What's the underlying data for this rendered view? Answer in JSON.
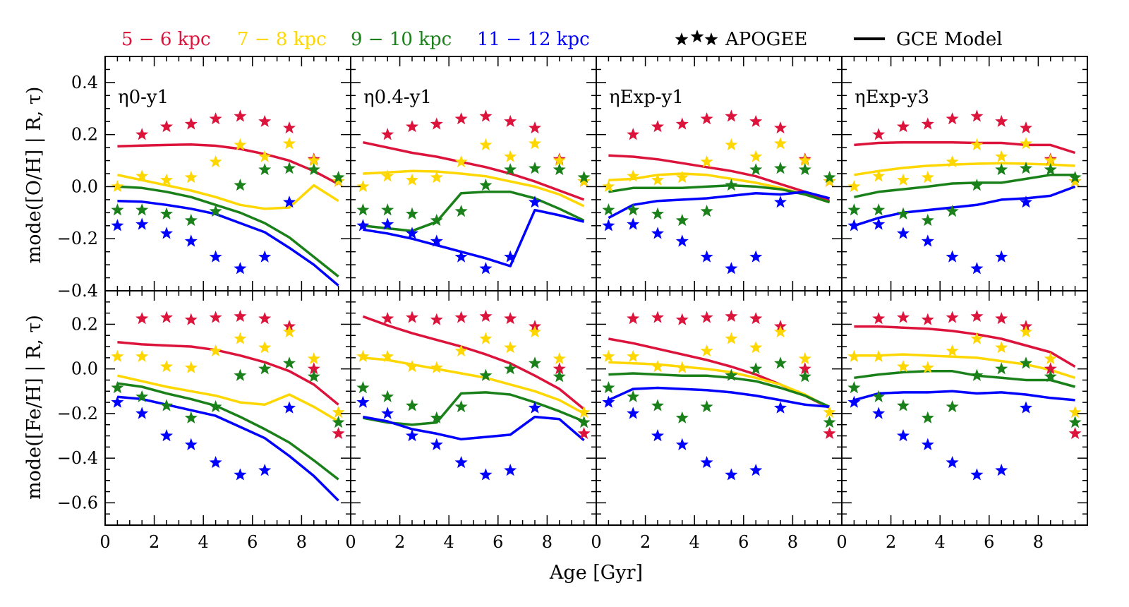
{
  "legend": {
    "bins": [
      {
        "label": "5 − 6 kpc",
        "color": "#dc143c"
      },
      {
        "label": "7 − 8 kpc",
        "color": "#ffd700"
      },
      {
        "label": "9 − 10 kpc",
        "color": "#1a801a"
      },
      {
        "label": "11 − 12 kpc",
        "color": "#0000ff"
      }
    ],
    "apogee_label": "APOGEE",
    "model_label": "GCE Model"
  },
  "xlabel": "Age [Gyr]",
  "ylabel_top": "mode([O/H] | R, τ)",
  "ylabel_bottom": "mode([Fe/H] | R, τ)",
  "chart_data": {
    "type": "line",
    "x_axis": {
      "range": [
        0,
        10
      ],
      "ticks": [
        0,
        2,
        4,
        6,
        8
      ],
      "tick_labels": [
        "0",
        "2",
        "4",
        "6",
        "8"
      ]
    },
    "rows": [
      {
        "quantity": "[O/H]",
        "ylim": [
          -0.4,
          0.5
        ],
        "ticks": [
          -0.4,
          -0.2,
          0.0,
          0.2,
          0.4
        ],
        "tick_labels": [
          "−0.4",
          "−0.2",
          "0.0",
          "0.2",
          "0.4"
        ]
      },
      {
        "quantity": "[Fe/H]",
        "ylim": [
          -0.7,
          0.35
        ],
        "ticks": [
          -0.6,
          -0.4,
          -0.2,
          0.0,
          0.2
        ],
        "tick_labels": [
          "−0.6",
          "−0.4",
          "−0.2",
          "0.0",
          "0.2"
        ]
      }
    ],
    "panels": [
      "η0-y1",
      "η0.4-y1",
      "ηExp-y1",
      "ηExp-y3"
    ],
    "apogee_x": [
      0.5,
      1.5,
      2.5,
      3.5,
      4.5,
      5.5,
      6.5,
      7.5,
      8.5,
      9.5
    ],
    "apogee": {
      "OH": [
        [
          null,
          0.2,
          0.23,
          0.24,
          0.26,
          0.27,
          0.25,
          0.225,
          0.105,
          0.02
        ],
        [
          0.0,
          0.04,
          0.025,
          0.035,
          0.095,
          0.16,
          0.115,
          0.165,
          0.1,
          0.02
        ],
        [
          -0.09,
          -0.09,
          -0.105,
          -0.13,
          -0.095,
          0.005,
          0.065,
          0.07,
          0.065,
          0.035
        ],
        [
          -0.15,
          -0.145,
          -0.18,
          -0.21,
          -0.27,
          -0.315,
          -0.27,
          -0.06,
          null,
          null
        ]
      ],
      "FeH": [
        [
          null,
          0.225,
          0.23,
          0.22,
          0.23,
          0.235,
          0.225,
          0.19,
          0.0,
          -0.29
        ],
        [
          0.055,
          0.055,
          0.01,
          0.005,
          0.08,
          0.135,
          0.095,
          0.165,
          0.045,
          -0.195
        ],
        [
          -0.085,
          -0.125,
          -0.165,
          -0.22,
          -0.17,
          -0.03,
          0.0,
          0.025,
          -0.035,
          -0.24
        ],
        [
          -0.15,
          -0.2,
          -0.3,
          -0.34,
          -0.42,
          -0.475,
          -0.455,
          -0.175,
          null,
          null
        ]
      ]
    },
    "model_x": [
      0.5,
      1.5,
      2.5,
      3.5,
      4.5,
      5.5,
      6.5,
      7.5,
      8.5,
      9.5
    ],
    "models": [
      {
        "OH": [
          [
            0.155,
            0.158,
            0.16,
            0.162,
            0.157,
            0.145,
            0.125,
            0.1,
            0.06,
            0.01
          ],
          [
            0.045,
            0.025,
            0.005,
            -0.015,
            -0.04,
            -0.07,
            -0.085,
            -0.08,
            0.005,
            -0.055
          ],
          [
            0.0,
            -0.005,
            -0.02,
            -0.04,
            -0.07,
            -0.1,
            -0.14,
            -0.195,
            -0.27,
            -0.345
          ],
          [
            -0.055,
            -0.058,
            -0.07,
            -0.085,
            -0.105,
            -0.14,
            -0.175,
            -0.235,
            -0.3,
            -0.38
          ]
        ],
        "FeH": [
          [
            0.12,
            0.11,
            0.105,
            0.1,
            0.085,
            0.06,
            0.03,
            -0.01,
            -0.07,
            -0.16
          ],
          [
            -0.03,
            -0.055,
            -0.08,
            -0.1,
            -0.12,
            -0.15,
            -0.16,
            -0.115,
            -0.17,
            -0.235
          ],
          [
            -0.065,
            -0.08,
            -0.11,
            -0.135,
            -0.165,
            -0.215,
            -0.27,
            -0.33,
            -0.41,
            -0.495
          ],
          [
            -0.125,
            -0.135,
            -0.16,
            -0.185,
            -0.21,
            -0.26,
            -0.31,
            -0.39,
            -0.48,
            -0.59
          ]
        ]
      },
      {
        "OH": [
          [
            0.17,
            0.15,
            0.13,
            0.115,
            0.095,
            0.075,
            0.05,
            0.02,
            -0.015,
            -0.05
          ],
          [
            0.05,
            0.055,
            0.06,
            0.058,
            0.05,
            0.04,
            0.02,
            0.0,
            -0.03,
            -0.075
          ],
          [
            -0.15,
            -0.16,
            -0.17,
            -0.135,
            -0.025,
            -0.02,
            -0.02,
            -0.045,
            -0.085,
            -0.13
          ],
          [
            -0.165,
            -0.18,
            -0.2,
            -0.225,
            -0.25,
            -0.275,
            -0.305,
            -0.09,
            -0.11,
            -0.135
          ]
        ],
        "FeH": [
          [
            0.235,
            0.195,
            0.16,
            0.13,
            0.1,
            0.065,
            0.025,
            -0.03,
            -0.09,
            -0.18
          ],
          [
            0.05,
            0.04,
            0.02,
            0.0,
            -0.02,
            -0.04,
            -0.07,
            -0.1,
            -0.14,
            -0.2
          ],
          [
            -0.22,
            -0.24,
            -0.25,
            -0.24,
            -0.11,
            -0.105,
            -0.115,
            -0.15,
            -0.19,
            -0.235
          ],
          [
            -0.215,
            -0.235,
            -0.27,
            -0.29,
            -0.315,
            -0.305,
            -0.295,
            -0.215,
            -0.225,
            -0.32
          ]
        ]
      },
      {
        "OH": [
          [
            0.12,
            0.115,
            0.105,
            0.09,
            0.075,
            0.06,
            0.04,
            0.01,
            -0.02,
            -0.055
          ],
          [
            0.025,
            0.03,
            0.045,
            0.05,
            0.045,
            0.03,
            0.015,
            -0.005,
            -0.03,
            -0.06
          ],
          [
            -0.02,
            -0.005,
            -0.005,
            -0.005,
            0.0,
            0.005,
            0.0,
            -0.01,
            -0.03,
            -0.06
          ],
          [
            -0.12,
            -0.07,
            -0.055,
            -0.05,
            -0.045,
            -0.035,
            -0.025,
            -0.03,
            -0.02,
            -0.045
          ]
        ],
        "FeH": [
          [
            0.135,
            0.115,
            0.09,
            0.065,
            0.04,
            0.01,
            -0.025,
            -0.07,
            -0.12,
            -0.175
          ],
          [
            0.03,
            0.025,
            0.02,
            0.01,
            0.0,
            -0.015,
            -0.04,
            -0.07,
            -0.115,
            -0.175
          ],
          [
            -0.025,
            -0.02,
            -0.025,
            -0.03,
            -0.03,
            -0.04,
            -0.055,
            -0.085,
            -0.12,
            -0.17
          ],
          [
            -0.14,
            -0.09,
            -0.085,
            -0.09,
            -0.095,
            -0.105,
            -0.12,
            -0.14,
            -0.16,
            -0.17
          ]
        ]
      },
      {
        "OH": [
          [
            0.16,
            0.168,
            0.17,
            0.17,
            0.17,
            0.168,
            0.168,
            0.16,
            0.16,
            0.13
          ],
          [
            0.045,
            0.06,
            0.072,
            0.08,
            0.085,
            0.088,
            0.09,
            0.088,
            0.085,
            0.08
          ],
          [
            -0.04,
            -0.02,
            -0.01,
            0.0,
            0.012,
            0.015,
            0.015,
            0.03,
            0.045,
            0.045
          ],
          [
            -0.15,
            -0.12,
            -0.1,
            -0.09,
            -0.08,
            -0.07,
            -0.05,
            -0.045,
            -0.035,
            0.0
          ]
        ],
        "FeH": [
          [
            0.19,
            0.19,
            0.185,
            0.18,
            0.17,
            0.155,
            0.135,
            0.105,
            0.075,
            0.01
          ],
          [
            0.06,
            0.06,
            0.065,
            0.06,
            0.055,
            0.05,
            0.035,
            0.02,
            -0.005,
            -0.04
          ],
          [
            -0.04,
            -0.025,
            -0.015,
            -0.01,
            -0.01,
            -0.03,
            -0.04,
            -0.05,
            -0.05,
            -0.08
          ],
          [
            -0.14,
            -0.11,
            -0.105,
            -0.105,
            -0.1,
            -0.11,
            -0.105,
            -0.115,
            -0.13,
            -0.14
          ]
        ]
      }
    ]
  }
}
